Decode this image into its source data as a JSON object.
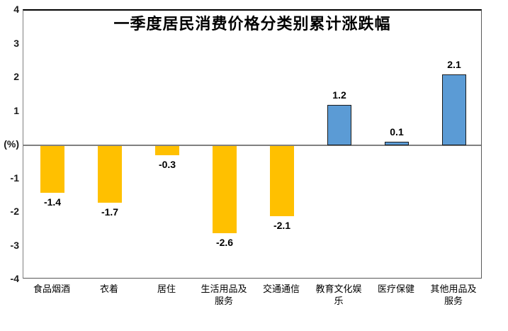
{
  "title": "一季度居民消费价格分类别累计涨跌幅",
  "y_axis": {
    "unit_label": "(%)",
    "tick_labels": [
      "4",
      "3",
      "2",
      "1",
      "(%)",
      "-1",
      "-2",
      "-3",
      "-4"
    ],
    "tick_values": [
      4,
      3,
      2,
      1,
      0,
      -1,
      -2,
      -3,
      -4
    ]
  },
  "chart_data": {
    "type": "bar",
    "title": "一季度居民消费价格分类别累计涨跌幅",
    "categories": [
      "食品烟酒",
      "衣着",
      "居住",
      "生活用品及服务",
      "交通通信",
      "教育文化娱乐",
      "医疗保健",
      "其他用品及服务"
    ],
    "values": [
      -1.4,
      -1.7,
      -0.3,
      -2.6,
      -2.1,
      1.2,
      0.1,
      2.1
    ],
    "value_labels": [
      "-1.4",
      "-1.7",
      "-0.3",
      "-2.6",
      "-2.1",
      "1.2",
      "0.1",
      "2.1"
    ],
    "xlabel": "",
    "ylabel": "(%)",
    "ylim": [
      -4,
      4
    ],
    "y_tick_step": 1,
    "grid": false,
    "legend_position": "none",
    "colors": {
      "negative_bar": "#FFC000",
      "positive_bar": "#5B9BD5",
      "positive_bar_border": "#1a1a1a",
      "zero_line": "#808080",
      "frame": "#595959",
      "text": "#000000"
    }
  }
}
